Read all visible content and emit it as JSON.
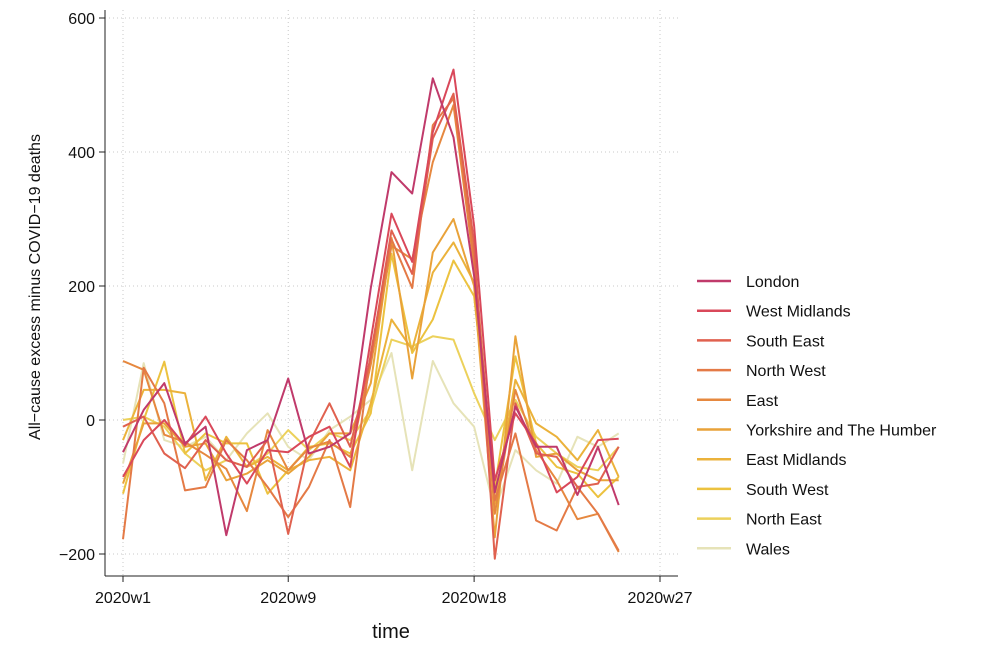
{
  "chart_data": {
    "type": "line",
    "xlabel": "time",
    "ylabel": "All−cause excess minus COVID−19 deaths",
    "xlim": [
      0,
      26
    ],
    "ylim": [
      -220,
      610
    ],
    "x_ticks": [
      {
        "x": 0,
        "label": "2020w1"
      },
      {
        "x": 8,
        "label": "2020w9"
      },
      {
        "x": 17,
        "label": "2020w18"
      },
      {
        "x": 26,
        "label": "2020w27"
      }
    ],
    "y_ticks": [
      {
        "y": -200,
        "label": "−200"
      },
      {
        "y": 0,
        "label": "0"
      },
      {
        "y": 200,
        "label": "200"
      },
      {
        "y": 400,
        "label": "400"
      },
      {
        "y": 600,
        "label": "600"
      }
    ],
    "grid": true,
    "legend_position": "right",
    "x": [
      0,
      1,
      2,
      3,
      4,
      5,
      6,
      7,
      8,
      9,
      10,
      11,
      12,
      13,
      14,
      15,
      16,
      17,
      18,
      19,
      20,
      21,
      22,
      23,
      24
    ],
    "series": [
      {
        "name": "London",
        "color": "#c03a6b",
        "values": [
          -48,
          15,
          55,
          -35,
          -10,
          -172,
          -45,
          -30,
          62,
          -50,
          -40,
          -20,
          197,
          370,
          338,
          510,
          422,
          215,
          -108,
          20,
          -40,
          -40,
          -112,
          -40,
          -127
        ]
      },
      {
        "name": "West Midlands",
        "color": "#d9485a",
        "values": [
          -85,
          -30,
          0,
          -38,
          5,
          -50,
          -95,
          -45,
          -48,
          -25,
          -10,
          -70,
          120,
          308,
          236,
          430,
          523,
          290,
          -90,
          10,
          -35,
          -108,
          -85,
          -30,
          -28
        ]
      },
      {
        "name": "South East",
        "color": "#e0614f",
        "values": [
          -10,
          5,
          -50,
          -72,
          -30,
          -60,
          -70,
          -30,
          -170,
          -35,
          25,
          -40,
          95,
          283,
          218,
          420,
          487,
          265,
          -207,
          25,
          -50,
          -55,
          -100,
          -95,
          -40
        ]
      },
      {
        "name": "North West",
        "color": "#e47a46",
        "values": [
          -178,
          78,
          25,
          -105,
          -100,
          -30,
          -60,
          -100,
          -145,
          -100,
          -30,
          -130,
          100,
          270,
          197,
          440,
          480,
          245,
          -120,
          -20,
          -150,
          -165,
          -100,
          -140,
          -195
        ]
      },
      {
        "name": "East",
        "color": "#e6883f",
        "values": [
          88,
          75,
          -22,
          -33,
          -52,
          -73,
          -136,
          -15,
          -75,
          -42,
          -32,
          -55,
          83,
          260,
          240,
          385,
          470,
          230,
          -140,
          45,
          -45,
          -90,
          -148,
          -140,
          -197
        ]
      },
      {
        "name": "Yorkshire and The Humber",
        "color": "#e9a239",
        "values": [
          -95,
          -5,
          -5,
          -40,
          -35,
          -90,
          -80,
          -60,
          -80,
          -55,
          -20,
          -20,
          55,
          272,
          62,
          250,
          300,
          200,
          -175,
          125,
          -55,
          -50,
          -75,
          -90,
          -90
        ]
      },
      {
        "name": "East Midlands",
        "color": "#ebb23b",
        "values": [
          -30,
          45,
          45,
          40,
          -90,
          -25,
          -70,
          -55,
          -75,
          -60,
          -55,
          -75,
          25,
          150,
          105,
          220,
          265,
          205,
          -125,
          60,
          -5,
          -25,
          -60,
          -15,
          -85
        ]
      },
      {
        "name": "South West",
        "color": "#ecc23f",
        "values": [
          -110,
          0,
          87,
          -50,
          -20,
          -35,
          -35,
          -110,
          -75,
          -40,
          -35,
          -50,
          10,
          248,
          100,
          150,
          238,
          185,
          -100,
          95,
          -35,
          -70,
          -80,
          -115,
          -85
        ]
      },
      {
        "name": "North East",
        "color": "#ecd15b",
        "values": [
          0,
          5,
          -10,
          -50,
          -75,
          -60,
          -70,
          -50,
          -15,
          -45,
          -20,
          -30,
          15,
          120,
          110,
          125,
          120,
          40,
          -30,
          30,
          -25,
          -50,
          -70,
          -75,
          -40
        ]
      },
      {
        "name": "Wales",
        "color": "#e6e3b8",
        "values": [
          -65,
          85,
          -30,
          -40,
          -25,
          -60,
          -20,
          10,
          -40,
          -60,
          -15,
          5,
          30,
          100,
          -75,
          88,
          25,
          -10,
          -135,
          -45,
          -75,
          -95,
          -25,
          -40,
          -20
        ]
      }
    ]
  }
}
